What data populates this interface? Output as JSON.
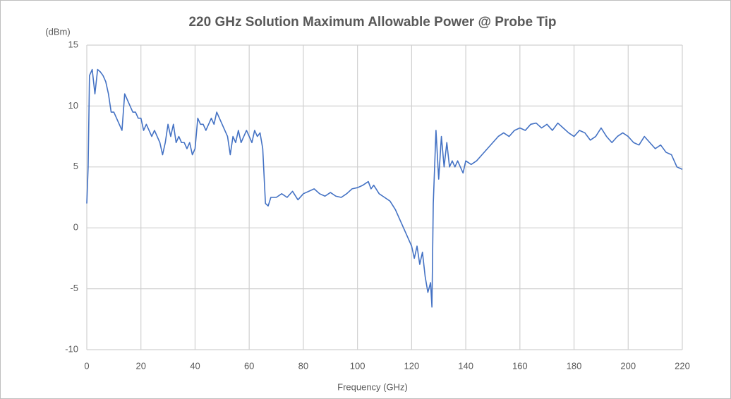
{
  "chart_data": {
    "type": "line",
    "title": "220 GHz Solution Maximum Allowable Power @ Probe Tip",
    "y_label": "(dBm)",
    "x_label": "Frequency (GHz)",
    "x": [
      0,
      0.5,
      1,
      2,
      3,
      4,
      5,
      6,
      7,
      8,
      9,
      10,
      11,
      12,
      13,
      14,
      15,
      16,
      17,
      18,
      19,
      20,
      21,
      22,
      23,
      24,
      25,
      26,
      27,
      28,
      29,
      30,
      31,
      32,
      33,
      34,
      35,
      36,
      37,
      38,
      39,
      40,
      41,
      42,
      43,
      44,
      45,
      46,
      47,
      48,
      49,
      50,
      51,
      52,
      53,
      54,
      55,
      56,
      57,
      58,
      59,
      60,
      61,
      62,
      63,
      64,
      65,
      66,
      67,
      68,
      70,
      72,
      74,
      76,
      78,
      80,
      82,
      84,
      86,
      88,
      90,
      92,
      94,
      96,
      98,
      100,
      102,
      104,
      105,
      106,
      108,
      110,
      112,
      114,
      116,
      118,
      120,
      121,
      122,
      123,
      124,
      125,
      126,
      127,
      127.5,
      128,
      128.5,
      129,
      130,
      131,
      132,
      133,
      134,
      135,
      136,
      137,
      138,
      139,
      140,
      142,
      144,
      146,
      148,
      150,
      152,
      154,
      156,
      158,
      160,
      162,
      164,
      166,
      168,
      170,
      172,
      174,
      176,
      178,
      180,
      182,
      184,
      186,
      188,
      190,
      192,
      194,
      196,
      198,
      200,
      202,
      204,
      206,
      208,
      210,
      212,
      214,
      216,
      218,
      220
    ],
    "series": [
      {
        "name": "Maximum Allowable Power",
        "color": "#4472c4",
        "values": [
          2,
          5,
          12.5,
          13,
          11,
          13,
          12.8,
          12.5,
          12,
          11,
          9.5,
          9.5,
          9,
          8.5,
          8,
          11,
          10.5,
          10,
          9.5,
          9.5,
          9,
          9,
          8,
          8.5,
          8,
          7.5,
          8,
          7.5,
          7,
          6,
          7,
          8.5,
          7.5,
          8.5,
          7,
          7.5,
          7,
          7,
          6.5,
          7,
          6,
          6.5,
          9,
          8.5,
          8.5,
          8,
          8.5,
          9,
          8.5,
          9.5,
          9,
          8.5,
          8,
          7.5,
          6,
          7.5,
          7,
          8,
          7,
          7.5,
          8,
          7.5,
          7,
          8,
          7.5,
          7.8,
          6.5,
          2,
          1.8,
          2.5,
          2.5,
          2.8,
          2.5,
          3,
          2.3,
          2.8,
          3,
          3.2,
          2.8,
          2.6,
          2.9,
          2.6,
          2.5,
          2.8,
          3.2,
          3.3,
          3.5,
          3.8,
          3.2,
          3.5,
          2.8,
          2.5,
          2.2,
          1.5,
          0.5,
          -0.5,
          -1.5,
          -2.5,
          -1.5,
          -3,
          -2,
          -4,
          -5.3,
          -4.5,
          -6.5,
          2,
          5,
          8,
          4,
          7.5,
          5,
          7,
          5,
          5.5,
          5,
          5.5,
          5,
          4.5,
          5.5,
          5.2,
          5.5,
          6,
          6.5,
          7,
          7.5,
          7.8,
          7.5,
          8,
          8.2,
          8,
          8.5,
          8.6,
          8.2,
          8.5,
          8,
          8.6,
          8.2,
          7.8,
          7.5,
          8,
          7.8,
          7.2,
          7.5,
          8.2,
          7.5,
          7,
          7.5,
          7.8,
          7.5,
          7,
          6.8,
          7.5,
          7,
          6.5,
          6.8,
          6.2,
          6,
          5,
          4.8
        ]
      }
    ],
    "xlim": [
      0,
      220
    ],
    "xticks": [
      0,
      20,
      40,
      60,
      80,
      100,
      120,
      140,
      160,
      180,
      200,
      220
    ],
    "ylim": [
      -10,
      15
    ],
    "yticks": [
      -10,
      -5,
      0,
      5,
      10,
      15
    ],
    "grid": true
  }
}
